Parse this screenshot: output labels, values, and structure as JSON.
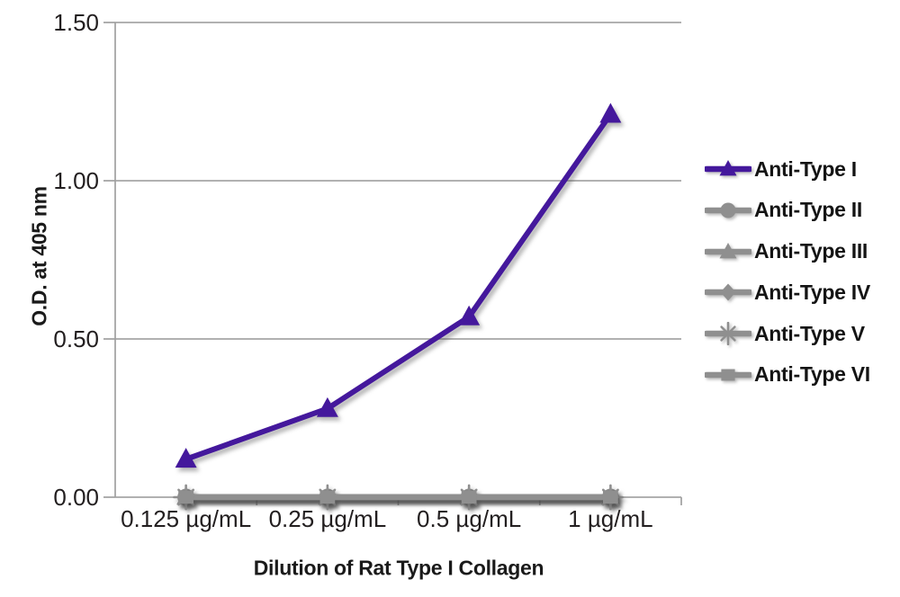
{
  "chart_data": {
    "type": "line",
    "title": "",
    "xlabel": "Dilution of Rat Type I Collagen",
    "ylabel": "O.D. at 405 nm",
    "categories": [
      "0.125 µg/mL",
      "0.25 µg/mL",
      "0.5 µg/mL",
      "1 µg/mL"
    ],
    "ylim": [
      0,
      1.5
    ],
    "yticks": [
      {
        "value": 0.0,
        "label": "0.00"
      },
      {
        "value": 0.5,
        "label": "0.50"
      },
      {
        "value": 1.0,
        "label": "1.00"
      },
      {
        "value": 1.5,
        "label": "1.50"
      }
    ],
    "grid": true,
    "legend_position": "right",
    "colors": {
      "axis": "#a0a0a0",
      "grid": "#a6a6a6",
      "purple": "#44189c",
      "gray": "#8f8f8f",
      "text": "#231f20"
    },
    "series": [
      {
        "name": "Anti-Type I",
        "marker": "triangle",
        "color": "#44189c",
        "values": [
          0.12,
          0.28,
          0.57,
          1.21
        ]
      },
      {
        "name": "Anti-Type II",
        "marker": "circle",
        "color": "#8f8f8f",
        "values": [
          0,
          0,
          0,
          0
        ]
      },
      {
        "name": "Anti-Type III",
        "marker": "triangle",
        "color": "#8f8f8f",
        "values": [
          0,
          0,
          0,
          0
        ]
      },
      {
        "name": "Anti-Type IV",
        "marker": "diamond",
        "color": "#8f8f8f",
        "values": [
          0,
          0,
          0,
          0
        ]
      },
      {
        "name": "Anti-Type V",
        "marker": "asterisk",
        "color": "#8f8f8f",
        "values": [
          0,
          0,
          0,
          0
        ]
      },
      {
        "name": "Anti-Type VI",
        "marker": "square",
        "color": "#8f8f8f",
        "values": [
          0,
          0,
          0,
          0
        ]
      }
    ]
  }
}
